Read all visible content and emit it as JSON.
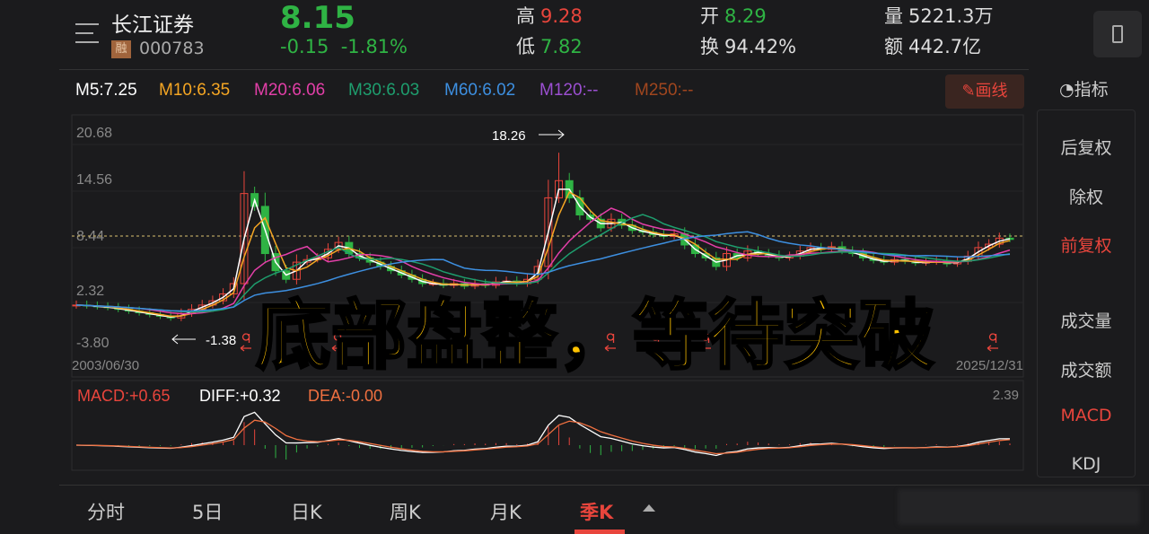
{
  "header": {
    "name": "长江证券",
    "margin_tag": "融",
    "code": "000783",
    "price": "8.15",
    "change": "-0.15",
    "change_pct": "-1.81%",
    "stats": [
      {
        "label": "高",
        "value": "9.28",
        "color": "#e8453c"
      },
      {
        "label": "低",
        "value": "7.82",
        "color": "#2fb344"
      },
      {
        "label": "开",
        "value": "8.29",
        "color": "#2fb344"
      },
      {
        "label": "换",
        "value": "94.42%",
        "color": "#dddddd"
      },
      {
        "label": "量",
        "value": "5221.3万",
        "color": "#dddddd"
      },
      {
        "label": "额",
        "value": "442.7亿",
        "color": "#dddddd"
      }
    ]
  },
  "ma_legend": [
    {
      "text": "M5:7.25",
      "color": "#ffffff"
    },
    {
      "text": "M10:6.35",
      "color": "#f5a623"
    },
    {
      "text": "M20:6.06",
      "color": "#e33fa8"
    },
    {
      "text": "M30:6.03",
      "color": "#1e9e6e"
    },
    {
      "text": "M60:6.02",
      "color": "#3d8fe0"
    },
    {
      "text": "M120:--",
      "color": "#9b4fd1"
    },
    {
      "text": "M250:--",
      "color": "#a0461e"
    }
  ],
  "draw_button": "画线",
  "indicator_button": "指标",
  "side_menu": [
    {
      "label": "后复权",
      "active": false
    },
    {
      "label": "除权",
      "active": false
    },
    {
      "label": "前复权",
      "active": true
    },
    {
      "label": "成交量",
      "active": false
    },
    {
      "label": "成交额",
      "active": false
    },
    {
      "label": "MACD",
      "active": true
    },
    {
      "label": "KDJ",
      "active": false
    }
  ],
  "price_axis": [
    "20.68",
    "14.56",
    "8.44",
    "2.32",
    "-3.80"
  ],
  "date_start": "2003/06/30",
  "date_end": "2025/12/31",
  "annotations": {
    "high": "18.26",
    "low": "-1.38"
  },
  "overlay_text": "底部盘整，等待突破",
  "macd": {
    "macd": "MACD:+0.65",
    "diff": "DIFF:+0.32",
    "dea": "DEA:-0.00",
    "axis_max": "2.39"
  },
  "tabs": [
    {
      "label": "分时"
    },
    {
      "label": "5日"
    },
    {
      "label": "日K"
    },
    {
      "label": "周K"
    },
    {
      "label": "月K"
    },
    {
      "label": "季K",
      "active": true
    }
  ],
  "colors": {
    "up": "#e8453c",
    "down": "#2fb344",
    "accent": "#e8453c",
    "overlay": "#ffc200"
  },
  "chart_data": {
    "type": "candlestick",
    "period": "quarterly",
    "ylim": [
      -3.8,
      20.68
    ],
    "closes": [
      0.5,
      0.4,
      0.3,
      0.2,
      0,
      -0.2,
      -0.4,
      -0.6,
      -0.8,
      -1.0,
      -0.5,
      0,
      0.5,
      1.0,
      1.8,
      3,
      13.5,
      12,
      6.5,
      4.5,
      3.5,
      5.5,
      5.8,
      6,
      7,
      7.8,
      6.5,
      6,
      5.5,
      5,
      4.5,
      4,
      3.5,
      3,
      3,
      2.8,
      3,
      2.7,
      3,
      2.8,
      3.2,
      3.3,
      3.0,
      3.5,
      5,
      13,
      15,
      13,
      11,
      10.5,
      9.5,
      10.5,
      9.8,
      9.2,
      9,
      8.7,
      8.5,
      8.8,
      7.5,
      6.5,
      6,
      5,
      6.5,
      6,
      6.8,
      6.5,
      6.3,
      6,
      6.2,
      6.8,
      7.2,
      7,
      7.3,
      6.8,
      6.5,
      6,
      5.7,
      5.5,
      5.8,
      5.6,
      5.4,
      5.5,
      5.6,
      5.3,
      5.6,
      6.2,
      7.2,
      7.6,
      8.3,
      8.15
    ]
  }
}
